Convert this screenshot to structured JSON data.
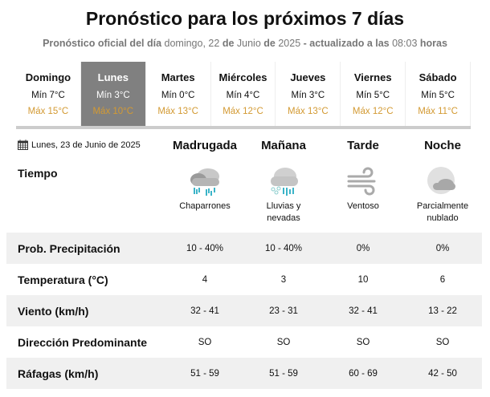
{
  "title": "Pronóstico para los próximos 7 días",
  "subtitle": {
    "p1": "Pronóstico oficial del día",
    "p2": "domingo, 22",
    "p3": "de",
    "p4": "Junio",
    "p5": "de",
    "p6": "2025",
    "p7": "- actualizado a las",
    "p8": "08:03",
    "p9": "horas"
  },
  "days": [
    {
      "name": "Domingo",
      "min": "Mín 7°C",
      "max": "Máx 15°C"
    },
    {
      "name": "Lunes",
      "min": "Mín 3°C",
      "max": "Máx 10°C",
      "selected": true
    },
    {
      "name": "Martes",
      "min": "Mín 0°C",
      "max": "Máx 13°C"
    },
    {
      "name": "Miércoles",
      "min": "Mín 4°C",
      "max": "Máx 12°C"
    },
    {
      "name": "Jueves",
      "min": "Mín 3°C",
      "max": "Máx 13°C"
    },
    {
      "name": "Viernes",
      "min": "Mín 5°C",
      "max": "Máx 12°C"
    },
    {
      "name": "Sábado",
      "min": "Mín 5°C",
      "max": "Máx 11°C"
    }
  ],
  "date_label": "Lunes, 23 de Junio de 2025",
  "periods": [
    "Madrugada",
    "Mañana",
    "Tarde",
    "Noche"
  ],
  "tiempo_label": "Tiempo",
  "weather": [
    {
      "icon": "rain-showers-icon",
      "l1": "Chaparrones",
      "l2": ""
    },
    {
      "icon": "rain-snow-icon",
      "l1": "Lluvias y",
      "l2": "nevadas"
    },
    {
      "icon": "wind-icon",
      "l1": "Ventoso",
      "l2": ""
    },
    {
      "icon": "partly-cloudy-night-icon",
      "l1": "Parcialmente",
      "l2": "nublado"
    }
  ],
  "rows": [
    {
      "label": "Prob. Precipitación",
      "values": [
        "10 - 40%",
        "10 - 40%",
        "0%",
        "0%"
      ]
    },
    {
      "label": "Temperatura (°C)",
      "values": [
        "4",
        "3",
        "10",
        "6"
      ]
    },
    {
      "label": "Viento (km/h)",
      "values": [
        "32 - 41",
        "23 - 31",
        "32 - 41",
        "13 - 22"
      ]
    },
    {
      "label": "Dirección Predominante",
      "values": [
        "SO",
        "SO",
        "SO",
        "SO"
      ]
    },
    {
      "label": "Ráfagas (km/h)",
      "values": [
        "51 - 59",
        "51 - 59",
        "60 - 69",
        "42 - 50"
      ]
    }
  ],
  "colors": {
    "max_temp": "#d39a33",
    "selected_day": "#808080",
    "rain": "#3cb4c8"
  }
}
